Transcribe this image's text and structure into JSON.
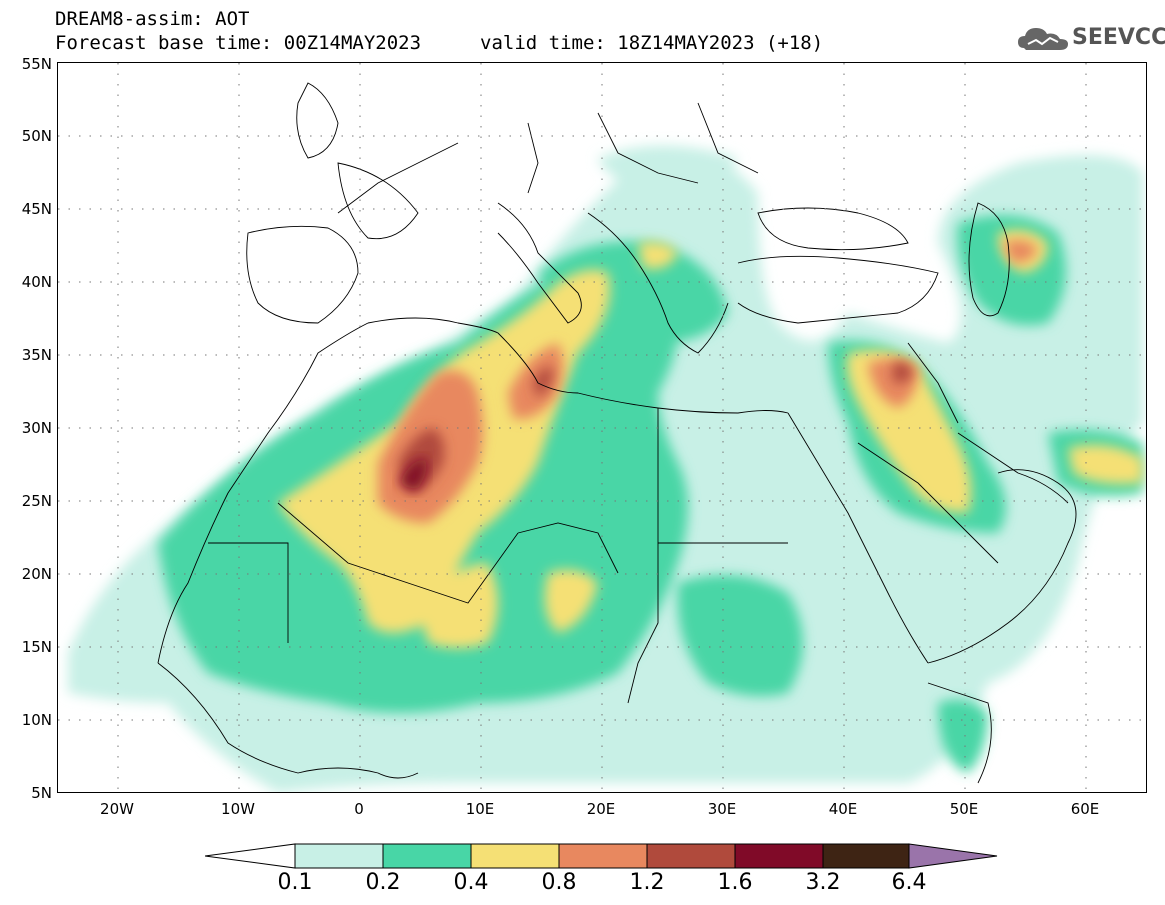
{
  "header": {
    "title_line1": "DREAM8-assim: AOT",
    "title_line2": "Forecast base time: 00Z14MAY2023",
    "valid_time": "valid time: 18Z14MAY2023 (+18)",
    "logo_text": "SEEVCCC",
    "logo_icon": "cloud-icon"
  },
  "map": {
    "lon_range": [
      -25,
      65
    ],
    "lat_range": [
      5,
      55
    ],
    "y_ticks": [
      "55N",
      "50N",
      "45N",
      "40N",
      "35N",
      "30N",
      "25N",
      "20N",
      "15N",
      "10N",
      "5N"
    ],
    "x_ticks": [
      "20W",
      "10W",
      "0",
      "10E",
      "20E",
      "30E",
      "40E",
      "50E",
      "60E"
    ],
    "colors": {
      "c1": "#c8f0e6",
      "c2": "#48d6a6",
      "c3": "#f5e075",
      "c4": "#e8885f",
      "c5": "#b04a3c",
      "c6": "#800a28",
      "c7": "#3e2414",
      "c8": "#9a74aa",
      "low": "#ffffff"
    }
  },
  "colorbar": {
    "labels": [
      "0.1",
      "0.2",
      "0.4",
      "0.8",
      "1.2",
      "1.6",
      "3.2",
      "6.4"
    ]
  }
}
